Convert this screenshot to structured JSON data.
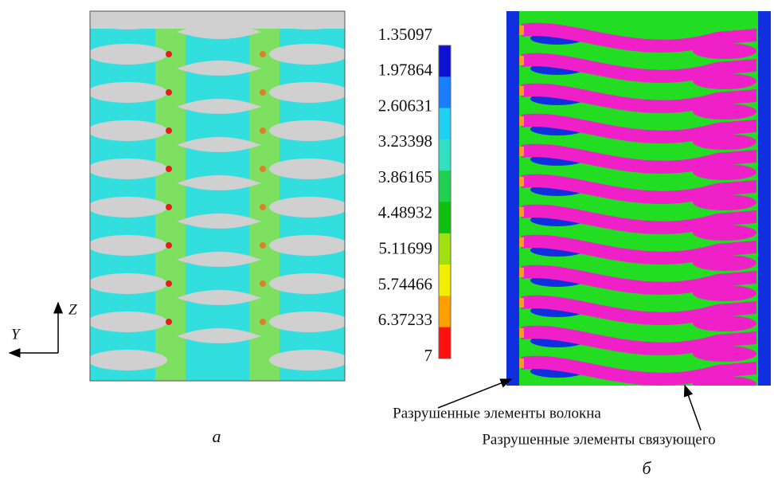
{
  "figure": {
    "colorbar": {
      "labels": [
        "1.35097",
        "1.97864",
        "2.60631",
        "3.23398",
        "3.86165",
        "4.48932",
        "5.11699",
        "5.74466",
        "6.37233",
        "7"
      ]
    },
    "axes": {
      "z": "Z",
      "y": "Y"
    },
    "annotations": [
      "Разрушенные элементы волокна",
      "Разрушенные элементы связующего"
    ],
    "captions": [
      "а",
      "б"
    ]
  }
}
